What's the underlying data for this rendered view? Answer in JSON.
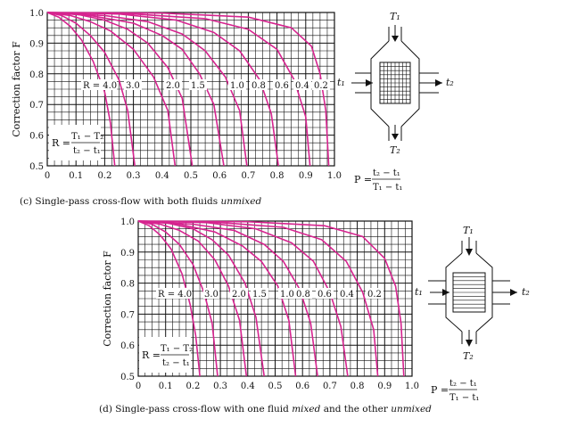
{
  "colors": {
    "curve": "#d6248f",
    "grid": "#111111",
    "text": "#111111"
  },
  "chart_data": [
    {
      "type": "line",
      "caption": {
        "prefix": "(c) Single-pass cross-flow with both fluids ",
        "emph": "unmixed"
      },
      "ylabel": "Correction factor F",
      "xlim": [
        0,
        1.0
      ],
      "ylim": [
        0.5,
        1.0
      ],
      "x_ticks": [
        "0",
        "0.1",
        "0.2",
        "0.3",
        "0.4",
        "0.5",
        "0.6",
        "0.7",
        "0.8",
        "0.9",
        "1.0"
      ],
      "y_ticks": [
        "0.5",
        "0.6",
        "0.7",
        "0.8",
        "0.9",
        "1.0"
      ],
      "grid": true,
      "r_label_text": [
        "R = 4.0",
        "3.0",
        "2.0",
        "1.5",
        "1.0",
        "0.8",
        "0.6",
        "0.4",
        "0.2"
      ],
      "formula_R": {
        "lhs": "R =",
        "num": "T₁ − T₂",
        "den": "t₂ − t₁"
      },
      "formula_P": {
        "lhs": "P =",
        "num": "t₂ − t₁",
        "den": "T₁ − t₁"
      },
      "diagram_labels": {
        "top": "T₁",
        "bottom": "T₂",
        "left": "t₁",
        "right": "t₂"
      },
      "series": [
        {
          "R": 4.0,
          "x": [
            0,
            0.04,
            0.08,
            0.12,
            0.16,
            0.2,
            0.22,
            0.235
          ],
          "y": [
            1.0,
            0.985,
            0.955,
            0.91,
            0.84,
            0.74,
            0.64,
            0.5
          ]
        },
        {
          "R": 3.0,
          "x": [
            0,
            0.05,
            0.1,
            0.15,
            0.2,
            0.25,
            0.28,
            0.305
          ],
          "y": [
            1.0,
            0.99,
            0.965,
            0.925,
            0.87,
            0.78,
            0.68,
            0.5
          ]
        },
        {
          "R": 2.0,
          "x": [
            0,
            0.08,
            0.15,
            0.22,
            0.3,
            0.37,
            0.42,
            0.445
          ],
          "y": [
            1.0,
            0.99,
            0.97,
            0.94,
            0.88,
            0.79,
            0.68,
            0.5
          ]
        },
        {
          "R": 1.5,
          "x": [
            0,
            0.1,
            0.2,
            0.28,
            0.35,
            0.42,
            0.47,
            0.505
          ],
          "y": [
            1.0,
            0.995,
            0.975,
            0.945,
            0.9,
            0.82,
            0.72,
            0.5
          ]
        },
        {
          "R": 1.0,
          "x": [
            0,
            0.15,
            0.3,
            0.4,
            0.47,
            0.53,
            0.58,
            0.615
          ],
          "y": [
            1.0,
            0.99,
            0.965,
            0.925,
            0.88,
            0.8,
            0.7,
            0.5
          ]
        },
        {
          "R": 0.8,
          "x": [
            0,
            0.2,
            0.35,
            0.47,
            0.55,
            0.62,
            0.67,
            0.695
          ],
          "y": [
            1.0,
            0.99,
            0.97,
            0.93,
            0.875,
            0.79,
            0.68,
            0.5
          ]
        },
        {
          "R": 0.6,
          "x": [
            0,
            0.25,
            0.45,
            0.58,
            0.67,
            0.74,
            0.78,
            0.805
          ],
          "y": [
            1.0,
            0.995,
            0.975,
            0.935,
            0.875,
            0.78,
            0.67,
            0.5
          ]
        },
        {
          "R": 0.4,
          "x": [
            0,
            0.3,
            0.55,
            0.7,
            0.8,
            0.86,
            0.9,
            0.915
          ],
          "y": [
            1.0,
            0.995,
            0.98,
            0.945,
            0.88,
            0.78,
            0.66,
            0.5
          ]
        },
        {
          "R": 0.2,
          "x": [
            0,
            0.4,
            0.7,
            0.85,
            0.92,
            0.95,
            0.97,
            0.98
          ],
          "y": [
            1.0,
            0.998,
            0.985,
            0.95,
            0.89,
            0.8,
            0.68,
            0.5
          ]
        }
      ]
    },
    {
      "type": "line",
      "caption": {
        "prefix": "(d) Single-pass cross-flow with one fluid ",
        "emph": "mixed",
        "middle": " and the other ",
        "emph2": "unmixed"
      },
      "ylabel": "Correction factor F",
      "xlim": [
        0,
        1.0
      ],
      "ylim": [
        0.5,
        1.0
      ],
      "x_ticks": [
        "0",
        "0.1",
        "0.2",
        "0.3",
        "0.4",
        "0.5",
        "0.6",
        "0.7",
        "0.8",
        "0.9",
        "1.0"
      ],
      "y_ticks": [
        "0.5",
        "0.6",
        "0.7",
        "0.8",
        "0.9",
        "1.0"
      ],
      "grid": true,
      "r_label_text": [
        "R = 4.0",
        "3.0",
        "2.0",
        "1.5",
        "1.0",
        "0.8",
        "0.6",
        "0.4",
        "0.2"
      ],
      "formula_R": {
        "lhs": "R =",
        "num": "T₁ − T₂",
        "den": "t₂ − t₁"
      },
      "formula_P": {
        "lhs": "P =",
        "num": "t₂ − t₁",
        "den": "T₁ − t₁"
      },
      "diagram_labels": {
        "top": "T₁",
        "bottom": "T₂",
        "left": "t₁",
        "right": "t₂"
      },
      "series": [
        {
          "R": 4.0,
          "x": [
            0,
            0.04,
            0.08,
            0.12,
            0.16,
            0.19,
            0.21,
            0.225
          ],
          "y": [
            1.0,
            0.985,
            0.955,
            0.91,
            0.83,
            0.73,
            0.63,
            0.5
          ]
        },
        {
          "R": 3.0,
          "x": [
            0,
            0.05,
            0.1,
            0.15,
            0.2,
            0.24,
            0.27,
            0.29
          ],
          "y": [
            1.0,
            0.99,
            0.965,
            0.925,
            0.86,
            0.77,
            0.67,
            0.5
          ]
        },
        {
          "R": 2.0,
          "x": [
            0,
            0.08,
            0.15,
            0.22,
            0.28,
            0.33,
            0.37,
            0.395
          ],
          "y": [
            1.0,
            0.99,
            0.97,
            0.935,
            0.875,
            0.79,
            0.68,
            0.5
          ]
        },
        {
          "R": 1.5,
          "x": [
            0,
            0.1,
            0.2,
            0.27,
            0.33,
            0.39,
            0.43,
            0.46
          ],
          "y": [
            1.0,
            0.995,
            0.975,
            0.94,
            0.89,
            0.8,
            0.69,
            0.5
          ]
        },
        {
          "R": 1.0,
          "x": [
            0,
            0.15,
            0.28,
            0.38,
            0.45,
            0.51,
            0.55,
            0.575
          ],
          "y": [
            1.0,
            0.99,
            0.965,
            0.92,
            0.87,
            0.79,
            0.68,
            0.5
          ]
        },
        {
          "R": 0.8,
          "x": [
            0,
            0.2,
            0.35,
            0.46,
            0.53,
            0.59,
            0.63,
            0.655
          ],
          "y": [
            1.0,
            0.99,
            0.97,
            0.925,
            0.87,
            0.78,
            0.67,
            0.5
          ]
        },
        {
          "R": 0.6,
          "x": [
            0,
            0.25,
            0.43,
            0.56,
            0.64,
            0.7,
            0.74,
            0.765
          ],
          "y": [
            1.0,
            0.995,
            0.975,
            0.93,
            0.87,
            0.77,
            0.66,
            0.5
          ]
        },
        {
          "R": 0.4,
          "x": [
            0,
            0.3,
            0.53,
            0.67,
            0.76,
            0.82,
            0.86,
            0.875
          ],
          "y": [
            1.0,
            0.995,
            0.98,
            0.94,
            0.87,
            0.77,
            0.65,
            0.5
          ]
        },
        {
          "R": 0.2,
          "x": [
            0,
            0.4,
            0.68,
            0.82,
            0.9,
            0.94,
            0.96,
            0.97
          ],
          "y": [
            1.0,
            0.998,
            0.985,
            0.95,
            0.88,
            0.79,
            0.67,
            0.5
          ]
        }
      ]
    }
  ]
}
